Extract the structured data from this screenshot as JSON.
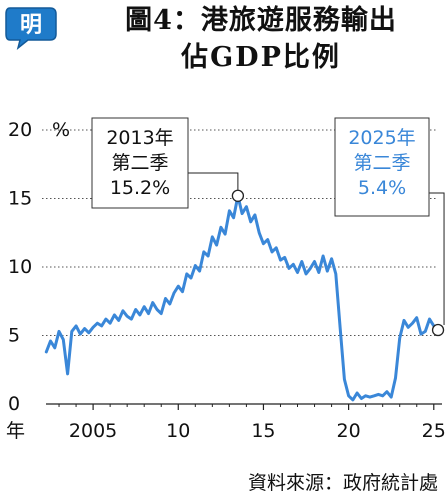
{
  "header": {
    "logo_char": "明",
    "title_line1": "圖4：港旅遊服務輸出",
    "title_line2": "佔GDP比例"
  },
  "source": "資料來源：政府統計處",
  "colors": {
    "line": "#3a87d8",
    "annotation_blue": "#3a87d8",
    "axis": "#222222",
    "logo_bg": "#1f7bc9"
  },
  "chart_data": {
    "type": "line",
    "y_unit": "%",
    "x_axis_label": "年",
    "x_ticks": [
      "2005",
      "10",
      "15",
      "20",
      "25"
    ],
    "y_ticks": [
      "0",
      "5",
      "10",
      "15",
      "20"
    ],
    "ylim": [
      0,
      20
    ],
    "xlim": [
      2002.0,
      2025.6
    ],
    "grid": "dotted horizontal",
    "series": [
      {
        "x": [
          2002.25,
          2002.5,
          2002.75,
          2003.0,
          2003.25,
          2003.5,
          2003.75,
          2004.0,
          2004.25,
          2004.5,
          2004.75,
          2005.0,
          2005.25,
          2005.5,
          2005.75,
          2006.0,
          2006.25,
          2006.5,
          2006.75,
          2007.0,
          2007.25,
          2007.5,
          2007.75,
          2008.0,
          2008.25,
          2008.5,
          2008.75,
          2009.0,
          2009.25,
          2009.5,
          2009.75,
          2010.0,
          2010.25,
          2010.5,
          2010.75,
          2011.0,
          2011.25,
          2011.5,
          2011.75,
          2012.0,
          2012.25,
          2012.5,
          2012.75,
          2013.0,
          2013.25,
          2013.5,
          2013.75,
          2014.0,
          2014.25,
          2014.5,
          2014.75,
          2015.0,
          2015.25,
          2015.5,
          2015.75,
          2016.0,
          2016.25,
          2016.5,
          2016.75,
          2017.0,
          2017.25,
          2017.5,
          2017.75,
          2018.0,
          2018.25,
          2018.5,
          2018.75,
          2019.0,
          2019.25,
          2019.5,
          2019.75,
          2020.0,
          2020.25,
          2020.5,
          2020.75,
          2021.0,
          2021.25,
          2021.5,
          2021.75,
          2022.0,
          2022.25,
          2022.5,
          2022.75,
          2023.0,
          2023.25,
          2023.5,
          2023.75,
          2024.0,
          2024.25,
          2024.5,
          2024.75,
          2025.0,
          2025.25
        ],
        "y": [
          3.8,
          4.6,
          4.1,
          5.3,
          4.7,
          2.2,
          5.3,
          5.7,
          5.1,
          5.5,
          5.2,
          5.6,
          5.9,
          5.7,
          6.2,
          5.9,
          6.5,
          6.1,
          6.8,
          6.4,
          6.2,
          6.9,
          6.5,
          7.1,
          6.6,
          7.4,
          6.9,
          6.6,
          7.7,
          7.3,
          8.1,
          8.6,
          8.2,
          9.5,
          9.2,
          10.1,
          9.7,
          11.1,
          10.8,
          12.2,
          11.6,
          12.9,
          12.4,
          14.1,
          13.6,
          15.2,
          13.9,
          14.4,
          13.3,
          13.8,
          12.5,
          11.7,
          12.0,
          11.1,
          11.4,
          10.5,
          10.7,
          9.9,
          10.2,
          9.6,
          10.4,
          9.5,
          9.9,
          10.4,
          9.6,
          10.8,
          9.7,
          10.6,
          9.5,
          5.6,
          1.8,
          0.6,
          0.3,
          0.8,
          0.4,
          0.6,
          0.5,
          0.6,
          0.7,
          0.6,
          0.9,
          0.5,
          1.9,
          4.8,
          6.1,
          5.6,
          5.9,
          6.3,
          5.1,
          5.3,
          6.2,
          5.7,
          5.4
        ]
      }
    ],
    "annotations": [
      {
        "lines": [
          "2013年",
          "第二季",
          "15.2%"
        ],
        "x": 2013.5,
        "y": 15.2,
        "color": "#111111"
      },
      {
        "lines": [
          "2025年",
          "第二季",
          "5.4%"
        ],
        "x": 2025.25,
        "y": 5.4,
        "color": "#3a87d8"
      }
    ]
  }
}
